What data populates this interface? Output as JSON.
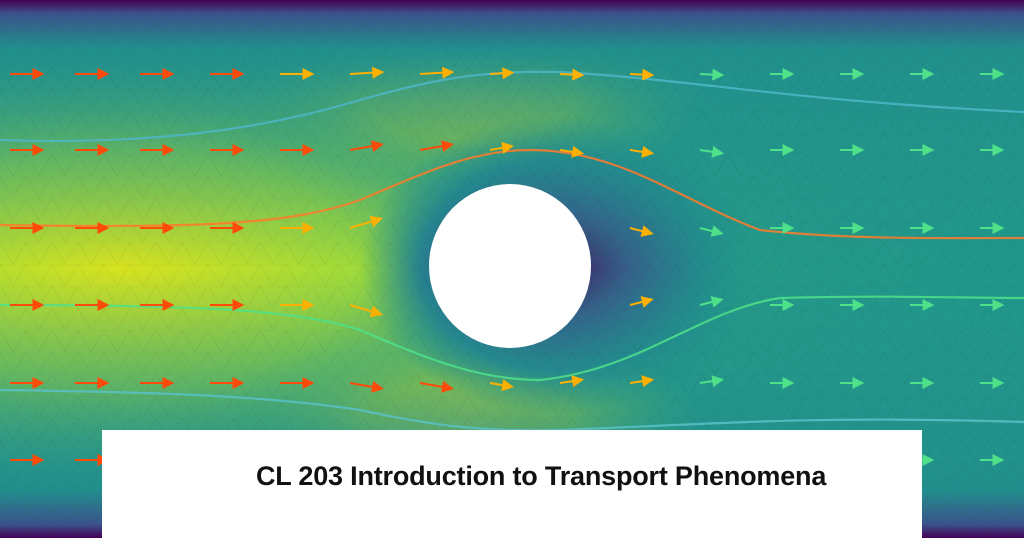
{
  "caption": {
    "title": "CL 203 Introduction to Transport Phenomena"
  },
  "figure": {
    "subject": "flow-around-cylinder",
    "colormap": [
      "#440154",
      "#3b528b",
      "#21908d",
      "#5dc963",
      "#fde725"
    ],
    "arrow_colors": {
      "fast": "#ff4b0a",
      "medium": "#ffb000",
      "slow": "#4fe08a"
    }
  }
}
